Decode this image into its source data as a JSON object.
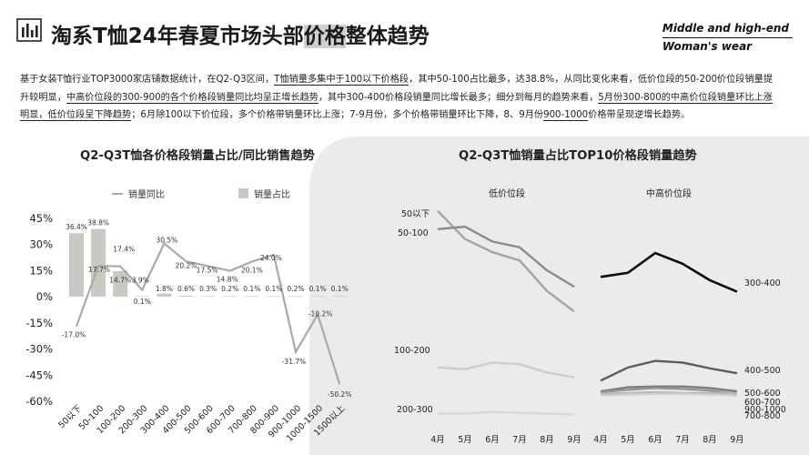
{
  "header": {
    "title_before": "淘系T恤24年春夏市场头部",
    "title_highlight": "价格",
    "title_after": "整体趋势",
    "tag_line1": "Middle and high-end",
    "tag_line2": "Woman's wear"
  },
  "summary": [
    {
      "t": "基于女装T恤行业TOP3000家店铺数据统计，在Q2-Q3区间，",
      "u": false
    },
    {
      "t": "T恤销量多集中于100以下价格段",
      "u": true
    },
    {
      "t": "，其中50-100占比最多，达38.8%，从同比变化来看，低价位段的50-200价位段销量提升较明显，",
      "u": false
    },
    {
      "t": "中高价位段的300-900的各个价格段销量同比均呈正增长趋势",
      "u": true
    },
    {
      "t": "，其中300-400价格段销量同比增长最多；细分到每月的趋势来看，",
      "u": false
    },
    {
      "t": "5月份300-800的中高价位段销量环比上涨明显，低价位段呈下降趋势",
      "u": true
    },
    {
      "t": "；6月除100以下价位段，多个价格带销量环比上涨；7-9月份，多个价格带销量环比下降，8、9月份",
      "u": false
    },
    {
      "t": "900-1000",
      "u": true
    },
    {
      "t": "价格带呈现逆增长趋势。",
      "u": false
    }
  ],
  "colors": {
    "bar": "#c9c9c1",
    "line": "#a9a9a9",
    "bg_shape": "#ebebeb",
    "panel_right_series": [
      "#0a0a0a",
      "#5c5c5c",
      "#7c7c7c",
      "#959595",
      "#b5b5b5",
      "#d0d0d0"
    ]
  },
  "left_chart_title": "Q2-Q3T恤各价格段销量占比/同比销售趋势",
  "right_chart_title": "Q2-Q3T恤销量占比TOP10价格段销量趋势",
  "chart_data": [
    {
      "type": "bar",
      "title": "Q2-Q3T恤各价格段销量占比/同比销售趋势",
      "categories": [
        "50以下",
        "50-100",
        "100-200",
        "200-300",
        "300-400",
        "400-500",
        "500-600",
        "600-700",
        "700-800",
        "800-900",
        "900-1000",
        "1000-1500",
        "1500以上"
      ],
      "series": [
        {
          "name": "销量占比",
          "kind": "bar",
          "values": [
            36.4,
            38.8,
            14.7,
            0.1,
            1.8,
            0.6,
            0.3,
            0.2,
            0.1,
            0.1,
            0.2,
            0.1,
            0.1
          ],
          "labels": [
            "36.4%",
            "38.8%",
            "14.7%",
            "0.1%",
            "1.8%",
            "0.6%",
            "0.3%",
            "0.2%",
            "0.1%",
            "0.1%",
            "0.2%",
            "0.1%",
            "0.1%"
          ]
        },
        {
          "name": "销量同比",
          "kind": "line",
          "values": [
            -17.0,
            17.7,
            17.4,
            3.9,
            30.5,
            20.2,
            17.5,
            14.8,
            20.1,
            24.0,
            -31.7,
            -10.2,
            -50.2
          ],
          "labels": [
            "-17.0%",
            "17.7%",
            "17.4%",
            "3.9%",
            "30.5%",
            "20.2%",
            "17.5%",
            "14.8%",
            "20.1%",
            "24.0%",
            "-31.7%",
            "-10.2%",
            "-50.2%"
          ]
        }
      ],
      "y_ticks": [
        "45%",
        "30%",
        "15%",
        "0%",
        "-15%",
        "-30%",
        "-45%",
        "-60%"
      ],
      "ylim": [
        -60,
        45
      ],
      "legend_position": "top",
      "grid": false
    },
    {
      "type": "line",
      "title": "Q2-Q3T恤销量占比TOP10价格段销量趋势",
      "panels": [
        {
          "name": "低价位段",
          "x": [
            "4月",
            "5月",
            "6月",
            "7月",
            "8月",
            "9月"
          ],
          "series": [
            {
              "name": "50以下",
              "values": [
                262,
                228,
                212,
                202,
                165,
                140
              ]
            },
            {
              "name": "50-100",
              "values": [
                240,
                243,
                225,
                218,
                190,
                170
              ]
            },
            {
              "name": "100-200",
              "values": [
                72,
                70,
                78,
                76,
                66,
                60
              ]
            },
            {
              "name": "200-300",
              "values": [
                16,
                16,
                18,
                17,
                16,
                15
              ]
            }
          ]
        },
        {
          "name": "中高价位段",
          "x": [
            "4月",
            "5月",
            "6月",
            "7月",
            "8月",
            "9月"
          ],
          "series": [
            {
              "name": "300-400",
              "values": [
                182,
                187,
                211,
                198,
                178,
                164
              ]
            },
            {
              "name": "400-500",
              "values": [
                56,
                72,
                80,
                78,
                71,
                65
              ]
            },
            {
              "name": "500-600",
              "values": [
                43,
                48,
                49,
                49,
                47,
                43
              ]
            },
            {
              "name": "600-700",
              "values": [
                42,
                45,
                47,
                46,
                44,
                40
              ]
            },
            {
              "name": "900-1000",
              "values": [
                40,
                41,
                42,
                41,
                41,
                41
              ]
            },
            {
              "name": "700-800",
              "values": [
                38,
                39,
                40,
                40,
                39,
                38
              ]
            }
          ]
        }
      ],
      "grid": false
    }
  ]
}
